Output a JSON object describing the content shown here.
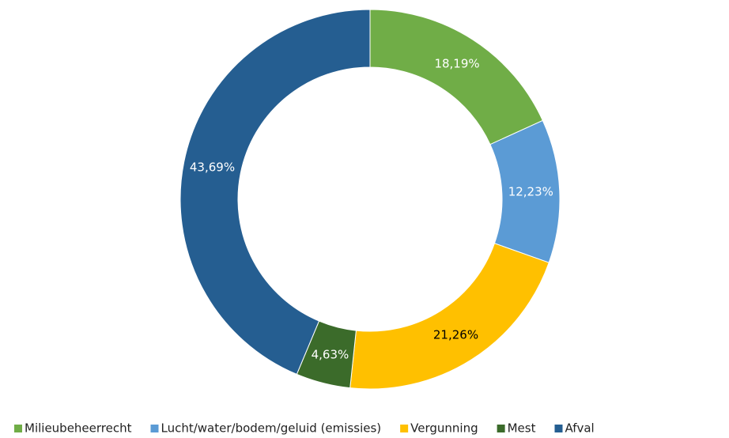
{
  "chart_data": {
    "type": "donut",
    "categories": [
      "Milieubeheerrecht",
      "Lucht/water/bodem/geluid (emissies)",
      "Vergunning",
      "Mest",
      "Afval"
    ],
    "values": [
      18.19,
      12.23,
      21.26,
      4.63,
      43.69
    ],
    "value_labels": [
      "18,19%",
      "12,23%",
      "21,26%",
      "4,63%",
      "43,69%"
    ],
    "colors": [
      "#70ad47",
      "#5b9bd5",
      "#ffc000",
      "#3b6b2a",
      "#255e91"
    ],
    "label_colors": [
      "#ffffff",
      "#ffffff",
      "#000000",
      "#ffffff",
      "#ffffff"
    ],
    "legend": "bottom"
  }
}
